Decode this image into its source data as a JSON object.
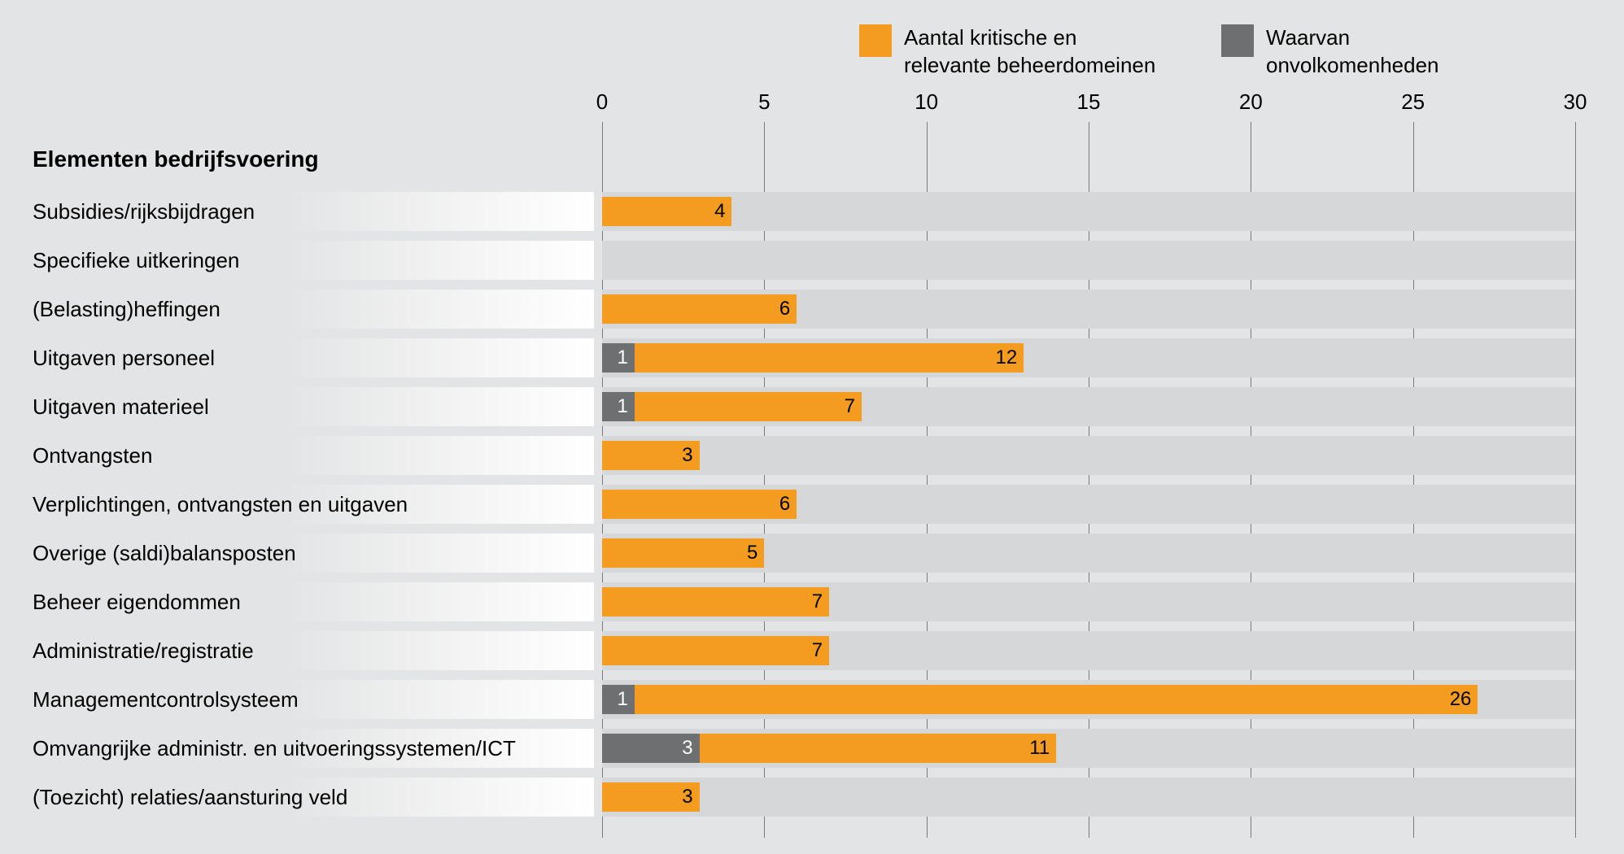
{
  "chart": {
    "type": "bar-stacked-horizontal",
    "background_color": "#e3e4e5",
    "row_bg_color": "#d6d7d8",
    "label_gradient_from": "#e3e4e5",
    "label_gradient_to": "#ffffff",
    "gridline_color": "#7a7b7c",
    "axis_fontsize": 26,
    "label_fontsize": 26,
    "title_fontsize": 28,
    "bar_value_fontsize": 24,
    "y_title": "Elementen bedrijfsvoering",
    "x_axis": {
      "min": 0,
      "max": 30,
      "ticks": [
        0,
        5,
        10,
        15,
        20,
        25,
        30
      ]
    },
    "legend": [
      {
        "key": "kritisch",
        "label": "Aantal kritische en relevante beheerdomeinen",
        "color": "#f39c1f"
      },
      {
        "key": "onvolkomen",
        "label": "Waarvan onvolkomenheden",
        "color": "#6e6f70"
      }
    ],
    "series_colors": {
      "kritisch": "#f39c1f",
      "onvolkomen": "#6e6f70"
    },
    "value_text_colors": {
      "kritisch": "#000000",
      "onvolkomen": "#ffffff"
    },
    "categories": [
      {
        "label": "Subsidies/rijksbijdragen",
        "onvolkomen": 0,
        "kritisch": 4
      },
      {
        "label": "Specifieke uitkeringen",
        "onvolkomen": 0,
        "kritisch": 0
      },
      {
        "label": "(Belasting)heffingen",
        "onvolkomen": 0,
        "kritisch": 6
      },
      {
        "label": "Uitgaven personeel",
        "onvolkomen": 1,
        "kritisch": 12
      },
      {
        "label": "Uitgaven materieel",
        "onvolkomen": 1,
        "kritisch": 7
      },
      {
        "label": "Ontvangsten",
        "onvolkomen": 0,
        "kritisch": 3
      },
      {
        "label": "Verplichtingen, ontvangsten en uitgaven",
        "onvolkomen": 0,
        "kritisch": 6
      },
      {
        "label": "Overige (saldi)balansposten",
        "onvolkomen": 0,
        "kritisch": 5
      },
      {
        "label": "Beheer eigendommen",
        "onvolkomen": 0,
        "kritisch": 7
      },
      {
        "label": "Administratie/registratie",
        "onvolkomen": 0,
        "kritisch": 7
      },
      {
        "label": "Managementcontrolsysteem",
        "onvolkomen": 1,
        "kritisch": 26
      },
      {
        "label": "Omvangrijke administr. en uitvoeringssystemen/ICT",
        "onvolkomen": 3,
        "kritisch": 11
      },
      {
        "label": "(Toezicht) relaties/aansturing veld",
        "onvolkomen": 0,
        "kritisch": 3
      }
    ]
  }
}
